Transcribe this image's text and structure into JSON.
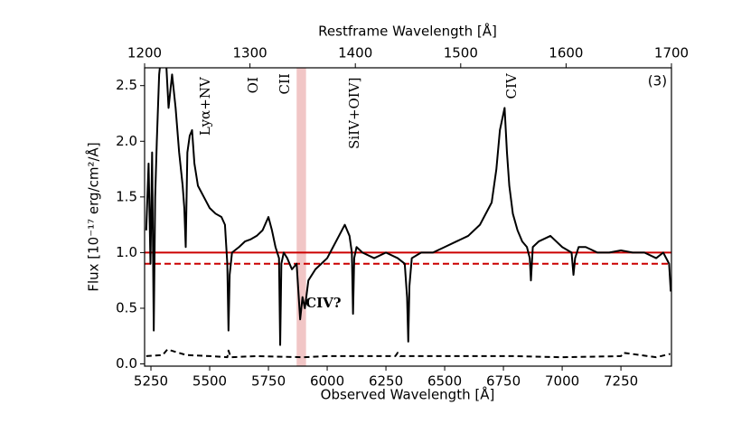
{
  "chart_data": {
    "type": "line",
    "xlabel": "Observed Wavelength [Å]",
    "x2label": "Restframe Wavelength [Å]",
    "ylabel": "Flux [10⁻¹⁷ erg/cm²/Å]",
    "xlim": [
      5223,
      7465
    ],
    "xticks": [
      5250,
      5500,
      5750,
      6000,
      6250,
      6500,
      6750,
      7000,
      7250
    ],
    "x2lim": [
      1200,
      1700
    ],
    "x2ticks": [
      1200,
      1300,
      1400,
      1500,
      1600,
      1700
    ],
    "ylim": [
      -0.02,
      2.66
    ],
    "yticks": [
      {
        "value": 0,
        "label": "0.0"
      },
      0.5,
      {
        "value": 1,
        "label": "1.0"
      },
      1.5,
      {
        "value": 2,
        "label": "2.0"
      },
      2.5
    ],
    "series": [
      {
        "color": "#000000",
        "linestyle": "solid",
        "x": [
          5230,
          5240,
          5248,
          5255,
          5262,
          5268,
          5275,
          5285,
          5295,
          5305,
          5315,
          5325,
          5340,
          5355,
          5370,
          5385,
          5392,
          5398,
          5405,
          5415,
          5425,
          5435,
          5450,
          5475,
          5500,
          5525,
          5550,
          5565,
          5575,
          5580,
          5585,
          5595,
          5625,
          5650,
          5675,
          5700,
          5725,
          5750,
          5765,
          5780,
          5795,
          5800,
          5805,
          5815,
          5830,
          5850,
          5870,
          5885,
          5895,
          5905,
          5920,
          5950,
          5975,
          6000,
          6025,
          6050,
          6075,
          6095,
          6105,
          6110,
          6115,
          6125,
          6150,
          6200,
          6250,
          6300,
          6330,
          6340,
          6345,
          6350,
          6360,
          6400,
          6450,
          6500,
          6550,
          6600,
          6650,
          6700,
          6720,
          6735,
          6745,
          6755,
          6765,
          6775,
          6790,
          6810,
          6830,
          6850,
          6862,
          6867,
          6875,
          6900,
          6950,
          7000,
          7040,
          7048,
          7055,
          7070,
          7100,
          7150,
          7200,
          7250,
          7300,
          7350,
          7400,
          7430,
          7455,
          7462
        ],
        "values": [
          1.2,
          1.8,
          0.9,
          1.9,
          0.3,
          1.5,
          2.0,
          2.6,
          2.8,
          2.9,
          2.7,
          2.3,
          2.6,
          2.3,
          1.9,
          1.6,
          1.4,
          1.05,
          1.9,
          2.05,
          2.1,
          1.8,
          1.6,
          1.5,
          1.4,
          1.35,
          1.32,
          1.25,
          0.9,
          0.3,
          0.8,
          1.0,
          1.05,
          1.1,
          1.12,
          1.15,
          1.2,
          1.32,
          1.2,
          1.05,
          0.95,
          0.17,
          0.9,
          1.0,
          0.95,
          0.85,
          0.9,
          0.4,
          0.6,
          0.5,
          0.75,
          0.85,
          0.9,
          0.95,
          1.05,
          1.15,
          1.25,
          1.15,
          1.0,
          0.45,
          0.95,
          1.05,
          1.0,
          0.95,
          1.0,
          0.95,
          0.9,
          0.6,
          0.2,
          0.7,
          0.95,
          1.0,
          1.0,
          1.05,
          1.1,
          1.15,
          1.25,
          1.45,
          1.75,
          2.1,
          2.2,
          2.3,
          1.9,
          1.6,
          1.35,
          1.2,
          1.1,
          1.05,
          0.95,
          0.75,
          1.05,
          1.1,
          1.15,
          1.05,
          1.0,
          0.8,
          0.95,
          1.05,
          1.05,
          1.0,
          1.0,
          1.02,
          1.0,
          1.0,
          0.95,
          1.0,
          0.9,
          0.65
        ]
      },
      {
        "color": "#000000",
        "linestyle": "dashed",
        "x": [
          5230,
          5300,
          5320,
          5400,
          5500,
          5575,
          5580,
          5590,
          5700,
          5900,
          6000,
          6290,
          6300,
          6310,
          6500,
          6800,
          7000,
          7250,
          7260,
          7400,
          7460
        ],
        "values": [
          0.07,
          0.08,
          0.13,
          0.08,
          0.07,
          0.06,
          0.12,
          0.06,
          0.07,
          0.06,
          0.07,
          0.07,
          0.1,
          0.07,
          0.07,
          0.07,
          0.06,
          0.07,
          0.1,
          0.06,
          0.09
        ]
      }
    ],
    "hlines": [
      {
        "value": 1.0,
        "color": "#cc0000",
        "linestyle": "solid"
      },
      {
        "value": 0.9,
        "color": "#cc0000",
        "linestyle": "dashed"
      }
    ],
    "span": {
      "xmin": 5870,
      "xmax": 5910,
      "color": "#e8a0a0"
    },
    "annotations": [
      {
        "text": "Lyα+NV",
        "x": 5484,
        "y": 2.05,
        "rotation": 90
      },
      {
        "text": "OI",
        "x": 5688,
        "y": 2.43,
        "rotation": 90
      },
      {
        "text": "CII",
        "x": 5823,
        "y": 2.42,
        "rotation": 90
      },
      {
        "text": "SiIV+OIV]",
        "x": 6119,
        "y": 1.93,
        "rotation": 90
      },
      {
        "text": "CIV",
        "x": 6788,
        "y": 2.38,
        "rotation": 90
      },
      {
        "text": "CIV?",
        "x": 5908,
        "y": 0.54,
        "rotation": 0,
        "color": "#cc0000",
        "bold": true
      },
      {
        "text": "(3)",
        "x": 7446,
        "y": 2.54,
        "rotation": 0,
        "anchor": "end"
      }
    ]
  }
}
